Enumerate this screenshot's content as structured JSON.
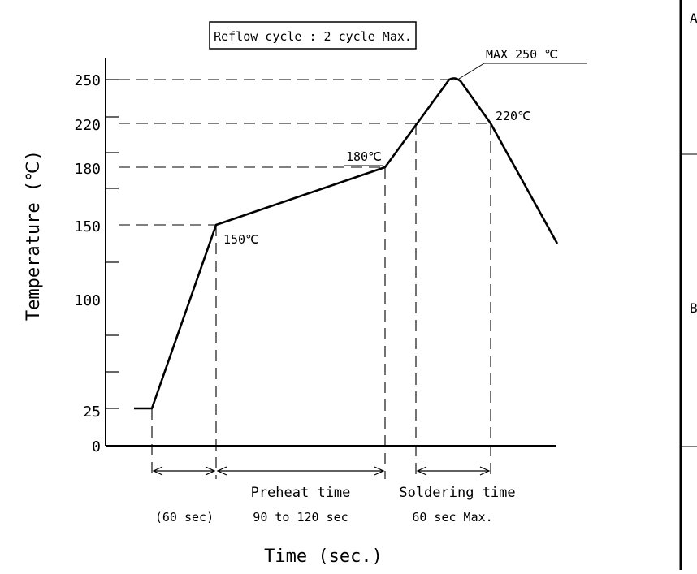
{
  "title_box": "Reflow cycle : 2 cycle Max.",
  "peak_label": "MAX 250 ℃",
  "point_labels": {
    "p150": "150℃",
    "p180": "180℃",
    "p220": "220℃"
  },
  "y_axis": {
    "label": "Temperature (℃)",
    "ticks": [
      "250",
      "220",
      "180",
      "150",
      "100",
      "25",
      "0"
    ]
  },
  "x_axis": {
    "label": "Time (sec.)"
  },
  "intervals": {
    "first": {
      "line1": "",
      "line2": "(60 sec)"
    },
    "preheat": {
      "line1": "Preheat time",
      "line2": "90 to 120 sec"
    },
    "soldering": {
      "line1": "Soldering time",
      "line2": "60 sec Max."
    }
  },
  "border_labels": {
    "a": "A",
    "b": "B"
  }
}
